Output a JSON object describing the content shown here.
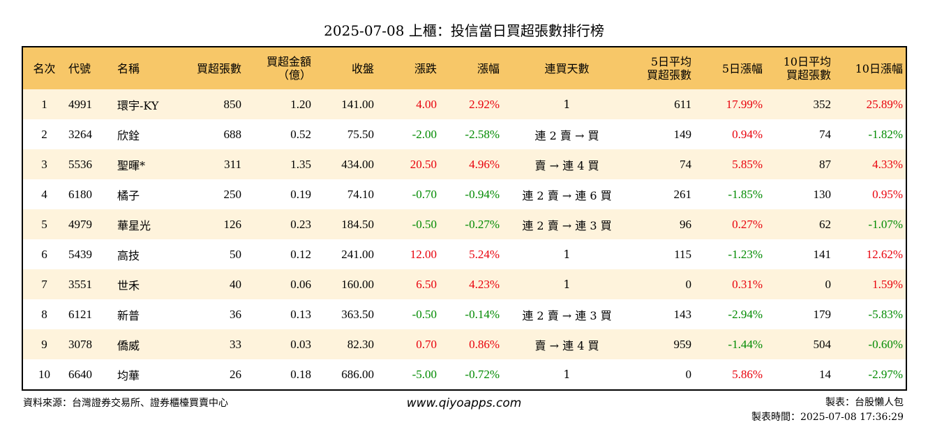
{
  "title": "2025-07-08 上櫃：投信當日買超張數排行榜",
  "colors": {
    "header_bg": "#f7c768",
    "row_alt_bg": "#fef3dc",
    "up": "#e8000b",
    "down": "#008a00"
  },
  "headers": {
    "rank": "名次",
    "code": "代號",
    "name": "名稱",
    "buy_lots": "買超張數",
    "buy_amount_l1": "買超金額",
    "buy_amount_l2": "（億）",
    "close": "收盤",
    "change": "漲跌",
    "change_pct": "漲幅",
    "consecutive_days": "連買天數",
    "avg5_l1": "5日平均",
    "avg5_l2": "買超張數",
    "pct5": "5日漲幅",
    "avg10_l1": "10日平均",
    "avg10_l2": "買超張數",
    "pct10": "10日漲幅"
  },
  "rows": [
    {
      "rank": "1",
      "code": "4991",
      "name": "環宇-KY",
      "lots": "850",
      "amount": "1.20",
      "close": "141.00",
      "change": "4.00",
      "change_pct": "2.92%",
      "days": "1",
      "avg5": "611",
      "pct5": "17.99%",
      "avg10": "352",
      "pct10": "25.89%"
    },
    {
      "rank": "2",
      "code": "3264",
      "name": "欣銓",
      "lots": "688",
      "amount": "0.52",
      "close": "75.50",
      "change": "-2.00",
      "change_pct": "-2.58%",
      "days": "連 2 賣 → 買",
      "avg5": "149",
      "pct5": "0.94%",
      "avg10": "74",
      "pct10": "-1.82%"
    },
    {
      "rank": "3",
      "code": "5536",
      "name": "聖暉*",
      "lots": "311",
      "amount": "1.35",
      "close": "434.00",
      "change": "20.50",
      "change_pct": "4.96%",
      "days": "賣 → 連 4 買",
      "avg5": "74",
      "pct5": "5.85%",
      "avg10": "87",
      "pct10": "4.33%"
    },
    {
      "rank": "4",
      "code": "6180",
      "name": "橘子",
      "lots": "250",
      "amount": "0.19",
      "close": "74.10",
      "change": "-0.70",
      "change_pct": "-0.94%",
      "days": "連 2 賣 → 連 6 買",
      "avg5": "261",
      "pct5": "-1.85%",
      "avg10": "130",
      "pct10": "0.95%"
    },
    {
      "rank": "5",
      "code": "4979",
      "name": "華星光",
      "lots": "126",
      "amount": "0.23",
      "close": "184.50",
      "change": "-0.50",
      "change_pct": "-0.27%",
      "days": "連 2 賣 → 連 3 買",
      "avg5": "96",
      "pct5": "0.27%",
      "avg10": "62",
      "pct10": "-1.07%"
    },
    {
      "rank": "6",
      "code": "5439",
      "name": "高技",
      "lots": "50",
      "amount": "0.12",
      "close": "241.00",
      "change": "12.00",
      "change_pct": "5.24%",
      "days": "1",
      "avg5": "115",
      "pct5": "-1.23%",
      "avg10": "141",
      "pct10": "12.62%"
    },
    {
      "rank": "7",
      "code": "3551",
      "name": "世禾",
      "lots": "40",
      "amount": "0.06",
      "close": "160.00",
      "change": "6.50",
      "change_pct": "4.23%",
      "days": "1",
      "avg5": "0",
      "pct5": "0.31%",
      "avg10": "0",
      "pct10": "1.59%"
    },
    {
      "rank": "8",
      "code": "6121",
      "name": "新普",
      "lots": "36",
      "amount": "0.13",
      "close": "363.50",
      "change": "-0.50",
      "change_pct": "-0.14%",
      "days": "連 2 賣 → 連 3 買",
      "avg5": "143",
      "pct5": "-2.94%",
      "avg10": "179",
      "pct10": "-5.83%"
    },
    {
      "rank": "9",
      "code": "3078",
      "name": "僑威",
      "lots": "33",
      "amount": "0.03",
      "close": "82.30",
      "change": "0.70",
      "change_pct": "0.86%",
      "days": "賣 → 連 4 買",
      "avg5": "959",
      "pct5": "-1.44%",
      "avg10": "504",
      "pct10": "-0.60%"
    },
    {
      "rank": "10",
      "code": "6640",
      "name": "均華",
      "lots": "26",
      "amount": "0.18",
      "close": "686.00",
      "change": "-5.00",
      "change_pct": "-0.72%",
      "days": "1",
      "avg5": "0",
      "pct5": "5.86%",
      "avg10": "14",
      "pct10": "-2.97%"
    }
  ],
  "footer": {
    "source": "資料來源：台灣證券交易所、證券櫃檯買賣中心",
    "url": "www.qiyoapps.com",
    "maker": "製表：台股懶人包",
    "made_time": "製表時間：2025-07-08 17:36:29"
  }
}
